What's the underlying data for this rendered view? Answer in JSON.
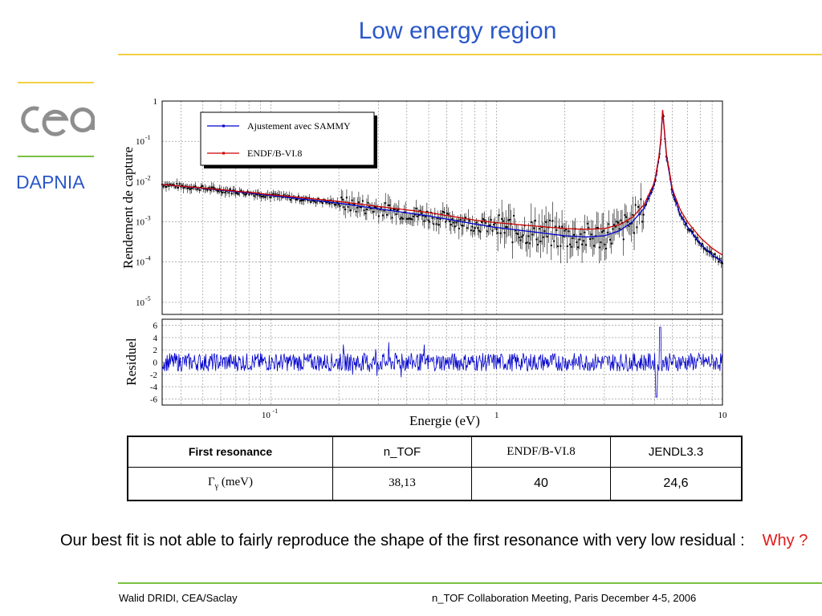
{
  "slide": {
    "title": "Low energy region",
    "dept": "DAPNIA",
    "logo": "cea",
    "footer_left": "Walid DRIDI, CEA/Saclay",
    "footer_right": "n_TOF Collaboration Meeting, Paris December 4-5, 2006",
    "note_text": "Our best fit is not able to fairly reproduce the shape of the first resonance with very low residual :",
    "note_why": "Why ?",
    "colors": {
      "title": "#2b57c9",
      "yellow": "#f4cf43",
      "green": "#7ac143",
      "logo_grey": "#8e8e8e",
      "why": "#e21a1a"
    }
  },
  "table": {
    "headers": [
      "First resonance",
      "n_TOF",
      "ENDF/B-VI.8",
      "JENDL3.3"
    ],
    "row_label": "Γ",
    "row_label_sub": "γ",
    "row_label_unit": "(meV)",
    "row_values": [
      "38,13",
      "40",
      "24,6"
    ]
  },
  "chart_data": [
    {
      "type": "line",
      "ylabel": "Rendement de capture",
      "xscale": "log",
      "yscale": "log",
      "xlim": [
        0.033,
        10
      ],
      "ylim": [
        5e-06,
        1
      ],
      "ytick_labels": [
        "10^-5",
        "10^-4",
        "10^-3",
        "10^-2",
        "10^-1",
        "1"
      ],
      "ytick_values": [
        1e-05,
        0.0001,
        0.001,
        0.01,
        0.1,
        1
      ],
      "grid": true,
      "legend_position": "top-left",
      "series": [
        {
          "name": "Ajustement avec SAMMY",
          "color": "#0000cc",
          "x": [
            0.033,
            0.05,
            0.08,
            0.1,
            0.15,
            0.2,
            0.3,
            0.5,
            0.8,
            1.0,
            1.5,
            2.0,
            2.5,
            3.0,
            3.5,
            4.0,
            4.5,
            5.0,
            5.3,
            5.45,
            5.6,
            6.0,
            6.5,
            7.0,
            8.0,
            9.0,
            10.0
          ],
          "y": [
            0.0085,
            0.0068,
            0.0052,
            0.0045,
            0.0035,
            0.0029,
            0.0021,
            0.0014,
            0.00088,
            0.00072,
            0.00055,
            0.00045,
            0.00042,
            0.00045,
            0.0006,
            0.001,
            0.0022,
            0.0085,
            0.06,
            0.7,
            0.06,
            0.0055,
            0.0015,
            0.00075,
            0.00028,
            0.00015,
            0.0001
          ]
        },
        {
          "name": "ENDF/B-VI.8",
          "color": "#cc0000",
          "x": [
            0.033,
            0.05,
            0.08,
            0.1,
            0.15,
            0.2,
            0.3,
            0.5,
            0.8,
            1.0,
            1.5,
            2.0,
            2.5,
            3.0,
            3.5,
            4.0,
            4.5,
            5.0,
            5.3,
            5.45,
            5.6,
            6.0,
            6.5,
            7.0,
            8.0,
            9.0,
            10.0
          ],
          "y": [
            0.0085,
            0.0069,
            0.0054,
            0.0047,
            0.0038,
            0.0032,
            0.0024,
            0.0017,
            0.0011,
            0.00095,
            0.00078,
            0.00068,
            0.00065,
            0.00068,
            0.00085,
            0.0013,
            0.0027,
            0.0095,
            0.065,
            0.75,
            0.065,
            0.0065,
            0.002,
            0.001,
            0.0004,
            0.00022,
            0.00015
          ]
        }
      ]
    },
    {
      "type": "line",
      "ylabel": "Residuel",
      "xlabel": "Energie (eV)",
      "xscale": "log",
      "xlim": [
        0.033,
        10
      ],
      "ylim": [
        -7,
        7
      ],
      "xtick_labels": [
        "10^-1",
        "1",
        "10"
      ],
      "xtick_values": [
        0.1,
        1,
        10
      ],
      "ytick_values": [
        -6,
        -4,
        -2,
        0,
        2,
        4,
        6
      ],
      "grid": true,
      "series": [
        {
          "color": "#0000cc",
          "x_range": [
            0.033,
            10
          ],
          "amplitude": 1.5,
          "features": [
            {
              "x": 5.3,
              "y": 6
            },
            {
              "x": 5.1,
              "y": -6
            }
          ]
        }
      ]
    }
  ]
}
